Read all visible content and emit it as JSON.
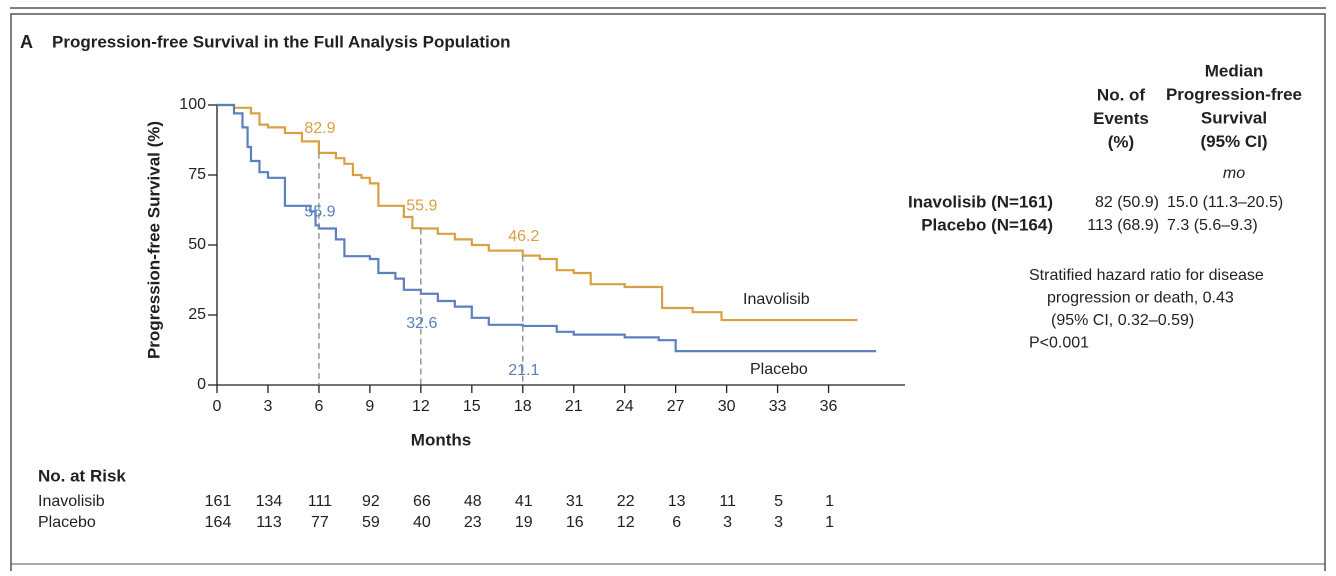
{
  "panel_label": "A",
  "chart_data": {
    "type": "step",
    "title": "Progression-free Survival in the Full Analysis Population",
    "x_label": "Months",
    "y_label": "Progression-free Survival (%)",
    "xlim": [
      0,
      40.5
    ],
    "ylim": [
      0,
      100
    ],
    "xticks": [
      0,
      3,
      6,
      9,
      12,
      15,
      18,
      21,
      24,
      27,
      30,
      33,
      36
    ],
    "yticks": [
      0,
      25,
      50,
      75,
      100
    ],
    "series": [
      {
        "name": "Inavolisib",
        "color": "#d9a043",
        "x": [
          0,
          1,
          2,
          2.5,
          3,
          4,
          5,
          6,
          7,
          7.5,
          8,
          8.5,
          9,
          9.5,
          11,
          11.5,
          12,
          13,
          14,
          15,
          16,
          18,
          19,
          20,
          21,
          22,
          24,
          26.2,
          28,
          29.7,
          37.7
        ],
        "values": [
          100,
          99,
          97,
          93,
          92,
          90,
          87,
          82.9,
          81,
          79,
          75,
          74,
          72,
          64,
          60,
          56,
          55.9,
          54,
          52,
          50,
          48,
          46.2,
          45,
          41,
          40,
          36,
          35,
          27.5,
          26,
          23.2,
          23.2
        ],
        "median_points": {
          "x": [
            6,
            12,
            18
          ],
          "values": [
            82.9,
            55.9,
            46.2
          ]
        }
      },
      {
        "name": "Placebo",
        "color": "#5b7fbf",
        "x": [
          0,
          1,
          1.5,
          1.8,
          2,
          2.5,
          3,
          4,
          5.5,
          5.8,
          6,
          7,
          7.5,
          9,
          9.5,
          10.5,
          11,
          12,
          13,
          14,
          15,
          16,
          18,
          20,
          21,
          24,
          26,
          27,
          38.8
        ],
        "values": [
          100,
          97,
          92,
          85,
          80,
          76,
          74,
          64,
          62,
          57,
          55.9,
          52,
          46,
          45,
          40,
          38,
          34,
          32.6,
          30,
          28,
          24,
          21.5,
          21.1,
          19,
          18,
          17,
          16,
          12.1,
          12.1
        ],
        "median_points": {
          "x": [
            6,
            12,
            18
          ],
          "values": [
            55.9,
            32.6,
            21.1
          ]
        }
      }
    ],
    "risk_table": {
      "title": "No. at Risk",
      "rows": [
        {
          "name": "Inavolisib",
          "values": [
            161,
            134,
            111,
            92,
            66,
            48,
            41,
            31,
            22,
            13,
            11,
            5,
            1
          ]
        },
        {
          "name": "Placebo",
          "values": [
            164,
            113,
            77,
            59,
            40,
            23,
            19,
            16,
            12,
            6,
            3,
            3,
            1
          ]
        }
      ]
    }
  },
  "summary_table": {
    "events_header": [
      "No. of",
      "Events",
      "(%)"
    ],
    "median_header": [
      "Median",
      "Progression-free",
      "Survival",
      "(95% CI)"
    ],
    "unit": "mo",
    "rows": [
      {
        "label": "Inavolisib (N=161)",
        "events": "82 (50.9)",
        "median": "15.0 (11.3–20.5)"
      },
      {
        "label": "Placebo (N=164)",
        "events": "113 (68.9)",
        "median": "7.3 (5.6–9.3)"
      }
    ]
  },
  "hazard_note": [
    "Stratified hazard ratio for disease",
    "progression or death, 0.43",
    "(95% CI, 0.32–0.59)",
    "P<0.001"
  ]
}
